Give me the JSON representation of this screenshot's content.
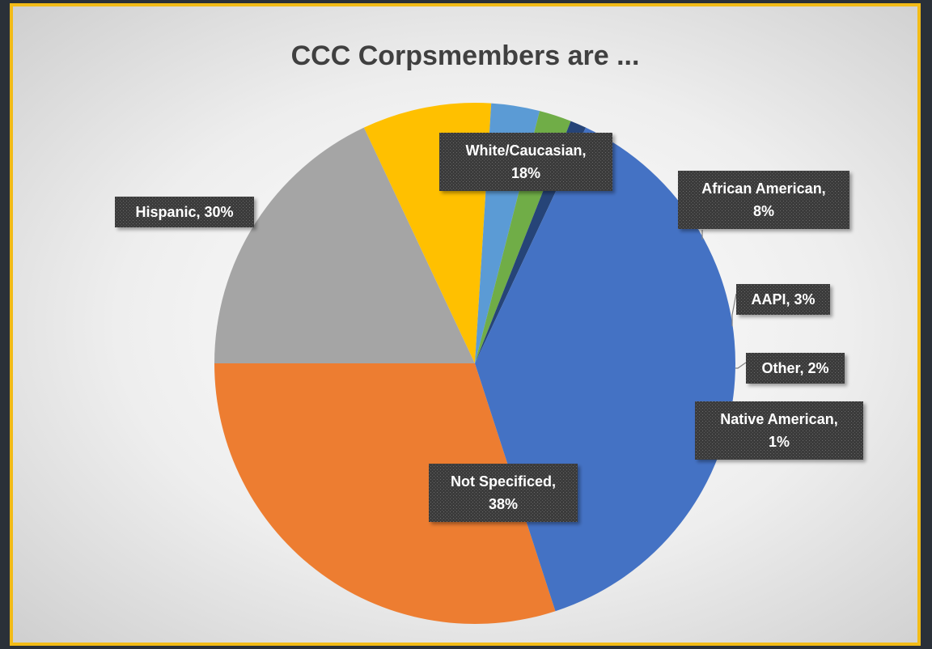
{
  "chart_data": {
    "type": "pie",
    "title": "CCC Corpsmembers are ...",
    "slices": [
      {
        "label": "Hispanic",
        "value": 30,
        "color": "#ED7D31",
        "text": [
          "Hispanic, 30%"
        ]
      },
      {
        "label": "White/Caucasian",
        "value": 18,
        "color": "#A5A5A5",
        "text": [
          "White/Caucasian,",
          "18%"
        ]
      },
      {
        "label": "African American",
        "value": 8,
        "color": "#FFC000",
        "text": [
          "African American,",
          "8%"
        ]
      },
      {
        "label": "AAPI",
        "value": 3,
        "color": "#5B9BD5",
        "text": [
          "AAPI, 3%"
        ]
      },
      {
        "label": "Other",
        "value": 2,
        "color": "#70AD47",
        "text": [
          "Other, 2%"
        ]
      },
      {
        "label": "Native American",
        "value": 1,
        "color": "#264478",
        "text": [
          "Native American,",
          "1%"
        ]
      },
      {
        "label": "Not Specificed",
        "value": 38,
        "color": "#4472C4",
        "text": [
          "Not Specificed,",
          "38%"
        ]
      }
    ],
    "legend": "none",
    "label_style": "dark callout boxes with white bold text"
  },
  "frame": {
    "border_color": "#F2BB17",
    "outer_background": "#2A3038"
  }
}
